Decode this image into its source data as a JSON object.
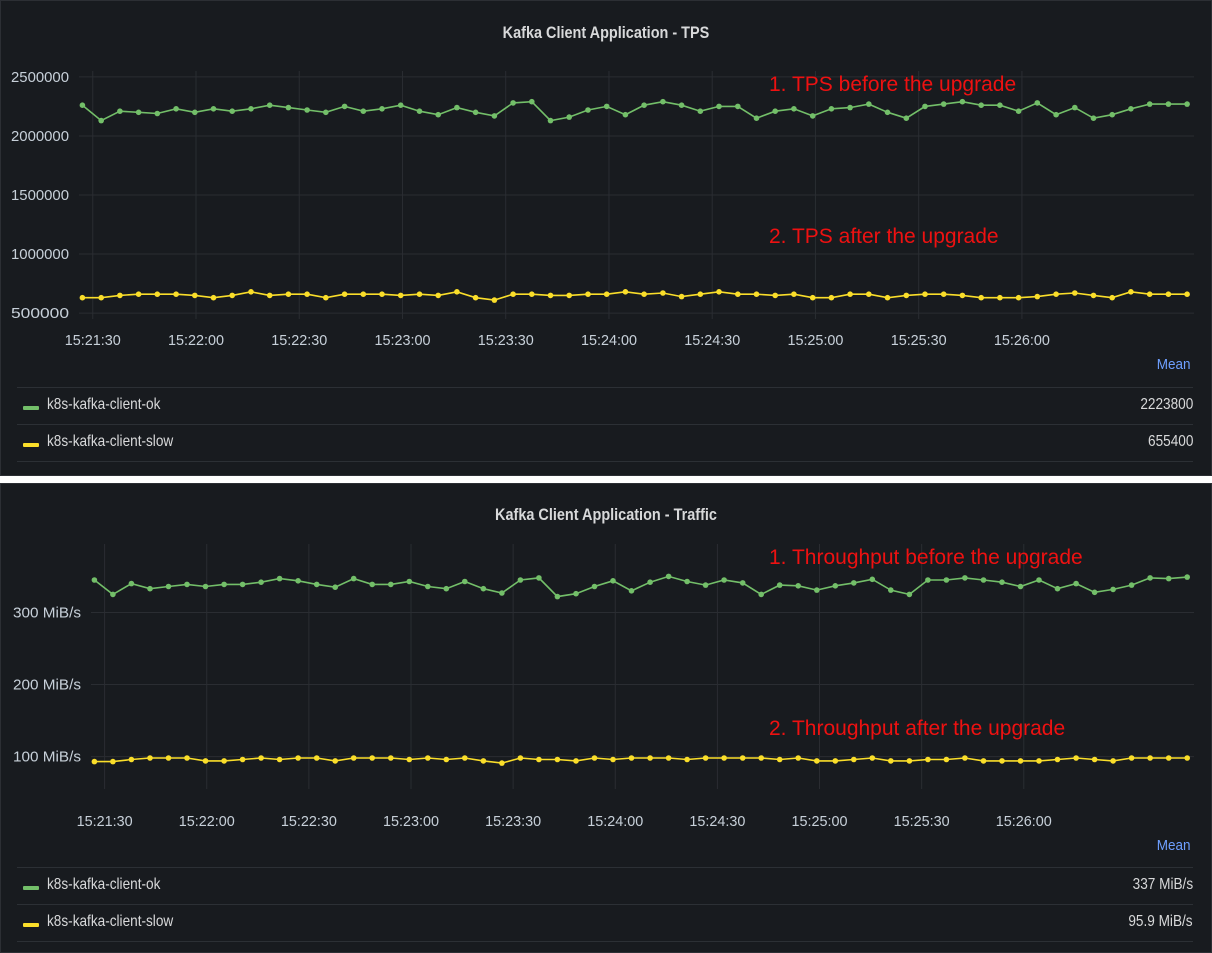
{
  "chart_data": [
    {
      "type": "line",
      "title": "Kafka Client Application - TPS",
      "x_ticks": [
        "15:21:30",
        "15:22:00",
        "15:22:30",
        "15:23:00",
        "15:23:30",
        "15:24:00",
        "15:24:30",
        "15:25:00",
        "15:25:30",
        "15:26:00"
      ],
      "x_range": [
        "15:21:26",
        "15:26:50"
      ],
      "y_ticks": [
        "500000",
        "1000000",
        "1500000",
        "2000000",
        "2500000"
      ],
      "ylim": [
        450000,
        2550000
      ],
      "grid": true,
      "series": [
        {
          "name": "k8s-kafka-client-ok",
          "color": "#73bf69",
          "values": [
            2260000,
            2130000,
            2210000,
            2200000,
            2190000,
            2230000,
            2200000,
            2230000,
            2210000,
            2230000,
            2260000,
            2240000,
            2220000,
            2200000,
            2250000,
            2210000,
            2230000,
            2260000,
            2210000,
            2180000,
            2240000,
            2200000,
            2170000,
            2280000,
            2290000,
            2130000,
            2160000,
            2220000,
            2250000,
            2180000,
            2260000,
            2290000,
            2260000,
            2210000,
            2250000,
            2250000,
            2150000,
            2210000,
            2230000,
            2170000,
            2230000,
            2240000,
            2270000,
            2200000,
            2150000,
            2250000,
            2270000,
            2290000,
            2260000,
            2260000,
            2210000,
            2280000,
            2180000,
            2240000,
            2150000,
            2180000,
            2230000,
            2270000,
            2270000,
            2270000
          ]
        },
        {
          "name": "k8s-kafka-client-slow",
          "color": "#fade2a",
          "values": [
            630000,
            630000,
            650000,
            660000,
            660000,
            660000,
            650000,
            630000,
            650000,
            680000,
            650000,
            660000,
            660000,
            630000,
            660000,
            660000,
            660000,
            650000,
            660000,
            650000,
            680000,
            630000,
            610000,
            660000,
            660000,
            650000,
            650000,
            660000,
            660000,
            680000,
            660000,
            670000,
            640000,
            660000,
            680000,
            660000,
            660000,
            650000,
            660000,
            630000,
            630000,
            660000,
            660000,
            630000,
            650000,
            660000,
            660000,
            650000,
            630000,
            630000,
            630000,
            640000,
            660000,
            670000,
            650000,
            630000,
            680000,
            660000,
            660000,
            660000
          ]
        }
      ],
      "legend": {
        "placement": "bottom",
        "header": "Mean",
        "values": [
          "2223800",
          "655400"
        ]
      },
      "annotations": [
        "1. TPS before the upgrade",
        "2. TPS after the upgrade"
      ]
    },
    {
      "type": "line",
      "title": "Kafka Client Application - Traffic",
      "x_ticks": [
        "15:21:30",
        "15:22:00",
        "15:22:30",
        "15:23:00",
        "15:23:30",
        "15:24:00",
        "15:24:30",
        "15:25:00",
        "15:25:30",
        "15:26:00"
      ],
      "x_range": [
        "15:21:26",
        "15:26:50"
      ],
      "y_ticks": [
        "100 MiB/s",
        "200 MiB/s",
        "300 MiB/s"
      ],
      "ylim": [
        55,
        395
      ],
      "grid": true,
      "series": [
        {
          "name": "k8s-kafka-client-ok",
          "color": "#73bf69",
          "values": [
            345,
            325,
            340,
            333,
            336,
            339,
            336,
            339,
            339,
            342,
            347,
            344,
            339,
            335,
            347,
            339,
            339,
            343,
            336,
            333,
            343,
            333,
            327,
            345,
            348,
            322,
            326,
            336,
            344,
            330,
            342,
            350,
            343,
            338,
            345,
            341,
            325,
            338,
            337,
            331,
            337,
            341,
            346,
            331,
            325,
            345,
            345,
            348,
            345,
            342,
            336,
            345,
            333,
            340,
            328,
            332,
            338,
            348,
            347,
            349
          ]
        },
        {
          "name": "k8s-kafka-client-slow",
          "color": "#fade2a",
          "values": [
            93,
            93,
            96,
            98,
            98,
            98,
            94,
            94,
            96,
            98,
            96,
            98,
            98,
            94,
            98,
            98,
            98,
            96,
            98,
            96,
            98,
            94,
            91,
            98,
            96,
            96,
            94,
            98,
            96,
            98,
            98,
            98,
            96,
            98,
            98,
            98,
            98,
            96,
            98,
            94,
            94,
            96,
            98,
            94,
            94,
            96,
            96,
            98,
            94,
            94,
            94,
            94,
            96,
            98,
            96,
            94,
            98,
            98,
            98,
            98
          ]
        }
      ],
      "legend": {
        "placement": "bottom",
        "header": "Mean",
        "values": [
          "337 MiB/s",
          "95.9 MiB/s"
        ]
      },
      "annotations": [
        "1. Throughput before the upgrade",
        "2. Throughput after the upgrade"
      ]
    }
  ]
}
